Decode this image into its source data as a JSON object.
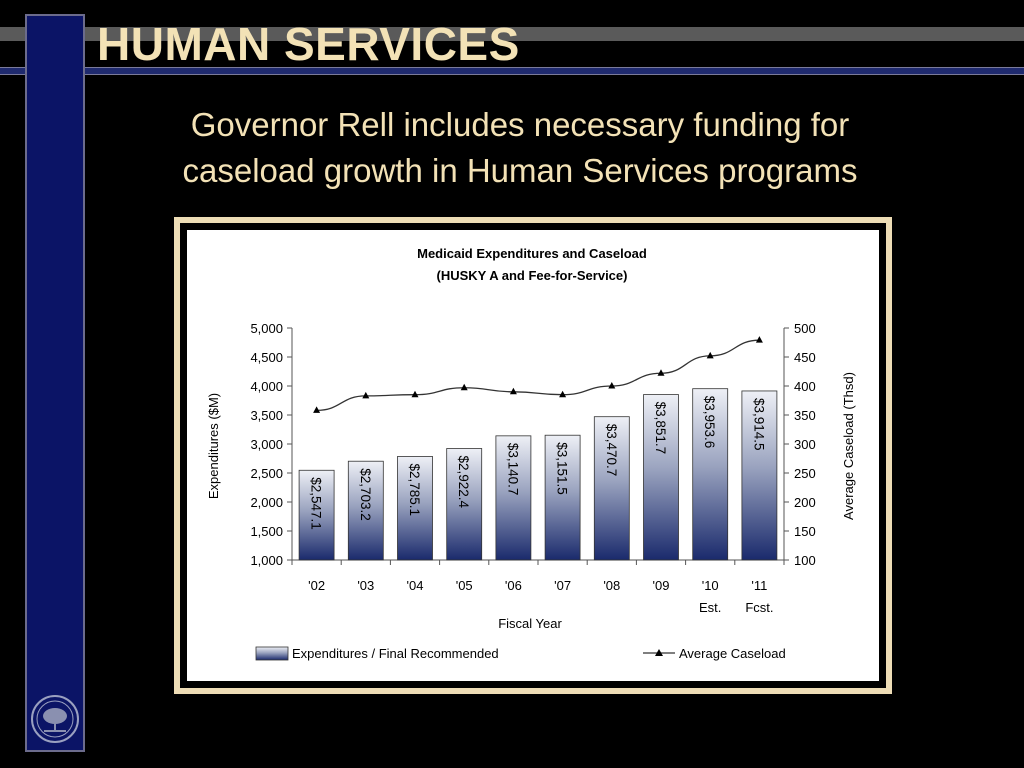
{
  "slide": {
    "title": "HUMAN SERVICES",
    "subtitle_line1": "Governor Rell includes necessary funding for",
    "subtitle_line2": "caseload growth in Human Services programs"
  },
  "colors": {
    "title": "#f3e2b6",
    "sidebar": "#0b1466",
    "bar_top": "#e8ebf2",
    "bar_bottom": "#1a2a6c",
    "line": "#333333"
  },
  "chart_data": {
    "type": "bar",
    "title_line1": "Medicaid Expenditures and Caseload",
    "title_line2": "(HUSKY A and Fee-for-Service)",
    "xlabel": "Fiscal Year",
    "ylabel_left": "Expenditures ($M)",
    "ylabel_right": "Average Caseload (Thsd)",
    "categories": [
      "'02",
      "'03",
      "'04",
      "'05",
      "'06",
      "'07",
      "'08",
      "'09",
      "'10",
      "'11"
    ],
    "category_sublabels": [
      "",
      "",
      "",
      "",
      "",
      "",
      "",
      "",
      "Est.",
      "Fcst."
    ],
    "series": [
      {
        "name": "Expenditures / Final Recommended",
        "type": "bar",
        "axis": "left",
        "values": [
          2547.1,
          2703.2,
          2785.1,
          2922.4,
          3140.7,
          3151.5,
          3470.7,
          3851.7,
          3953.6,
          3914.5
        ],
        "labels": [
          "$2,547.1",
          "$2,703.2",
          "$2,785.1",
          "$2,922.4",
          "$3,140.7",
          "$3,151.5",
          "$3,470.7",
          "$3,851.7",
          "$3,953.6",
          "$3,914.5"
        ]
      },
      {
        "name": "Average Caseload",
        "type": "line",
        "axis": "right",
        "values": [
          358,
          383,
          385,
          397,
          390,
          385,
          400,
          422,
          452,
          479
        ]
      }
    ],
    "ylim_left": [
      1000,
      5000
    ],
    "ylim_right": [
      100,
      500
    ],
    "yticks_left": [
      "1,000",
      "1,500",
      "2,000",
      "2,500",
      "3,000",
      "3,500",
      "4,000",
      "4,500",
      "5,000"
    ],
    "yticks_right": [
      "100",
      "150",
      "200",
      "250",
      "300",
      "350",
      "400",
      "450",
      "500"
    ],
    "grid": false,
    "legend_position": "bottom"
  }
}
